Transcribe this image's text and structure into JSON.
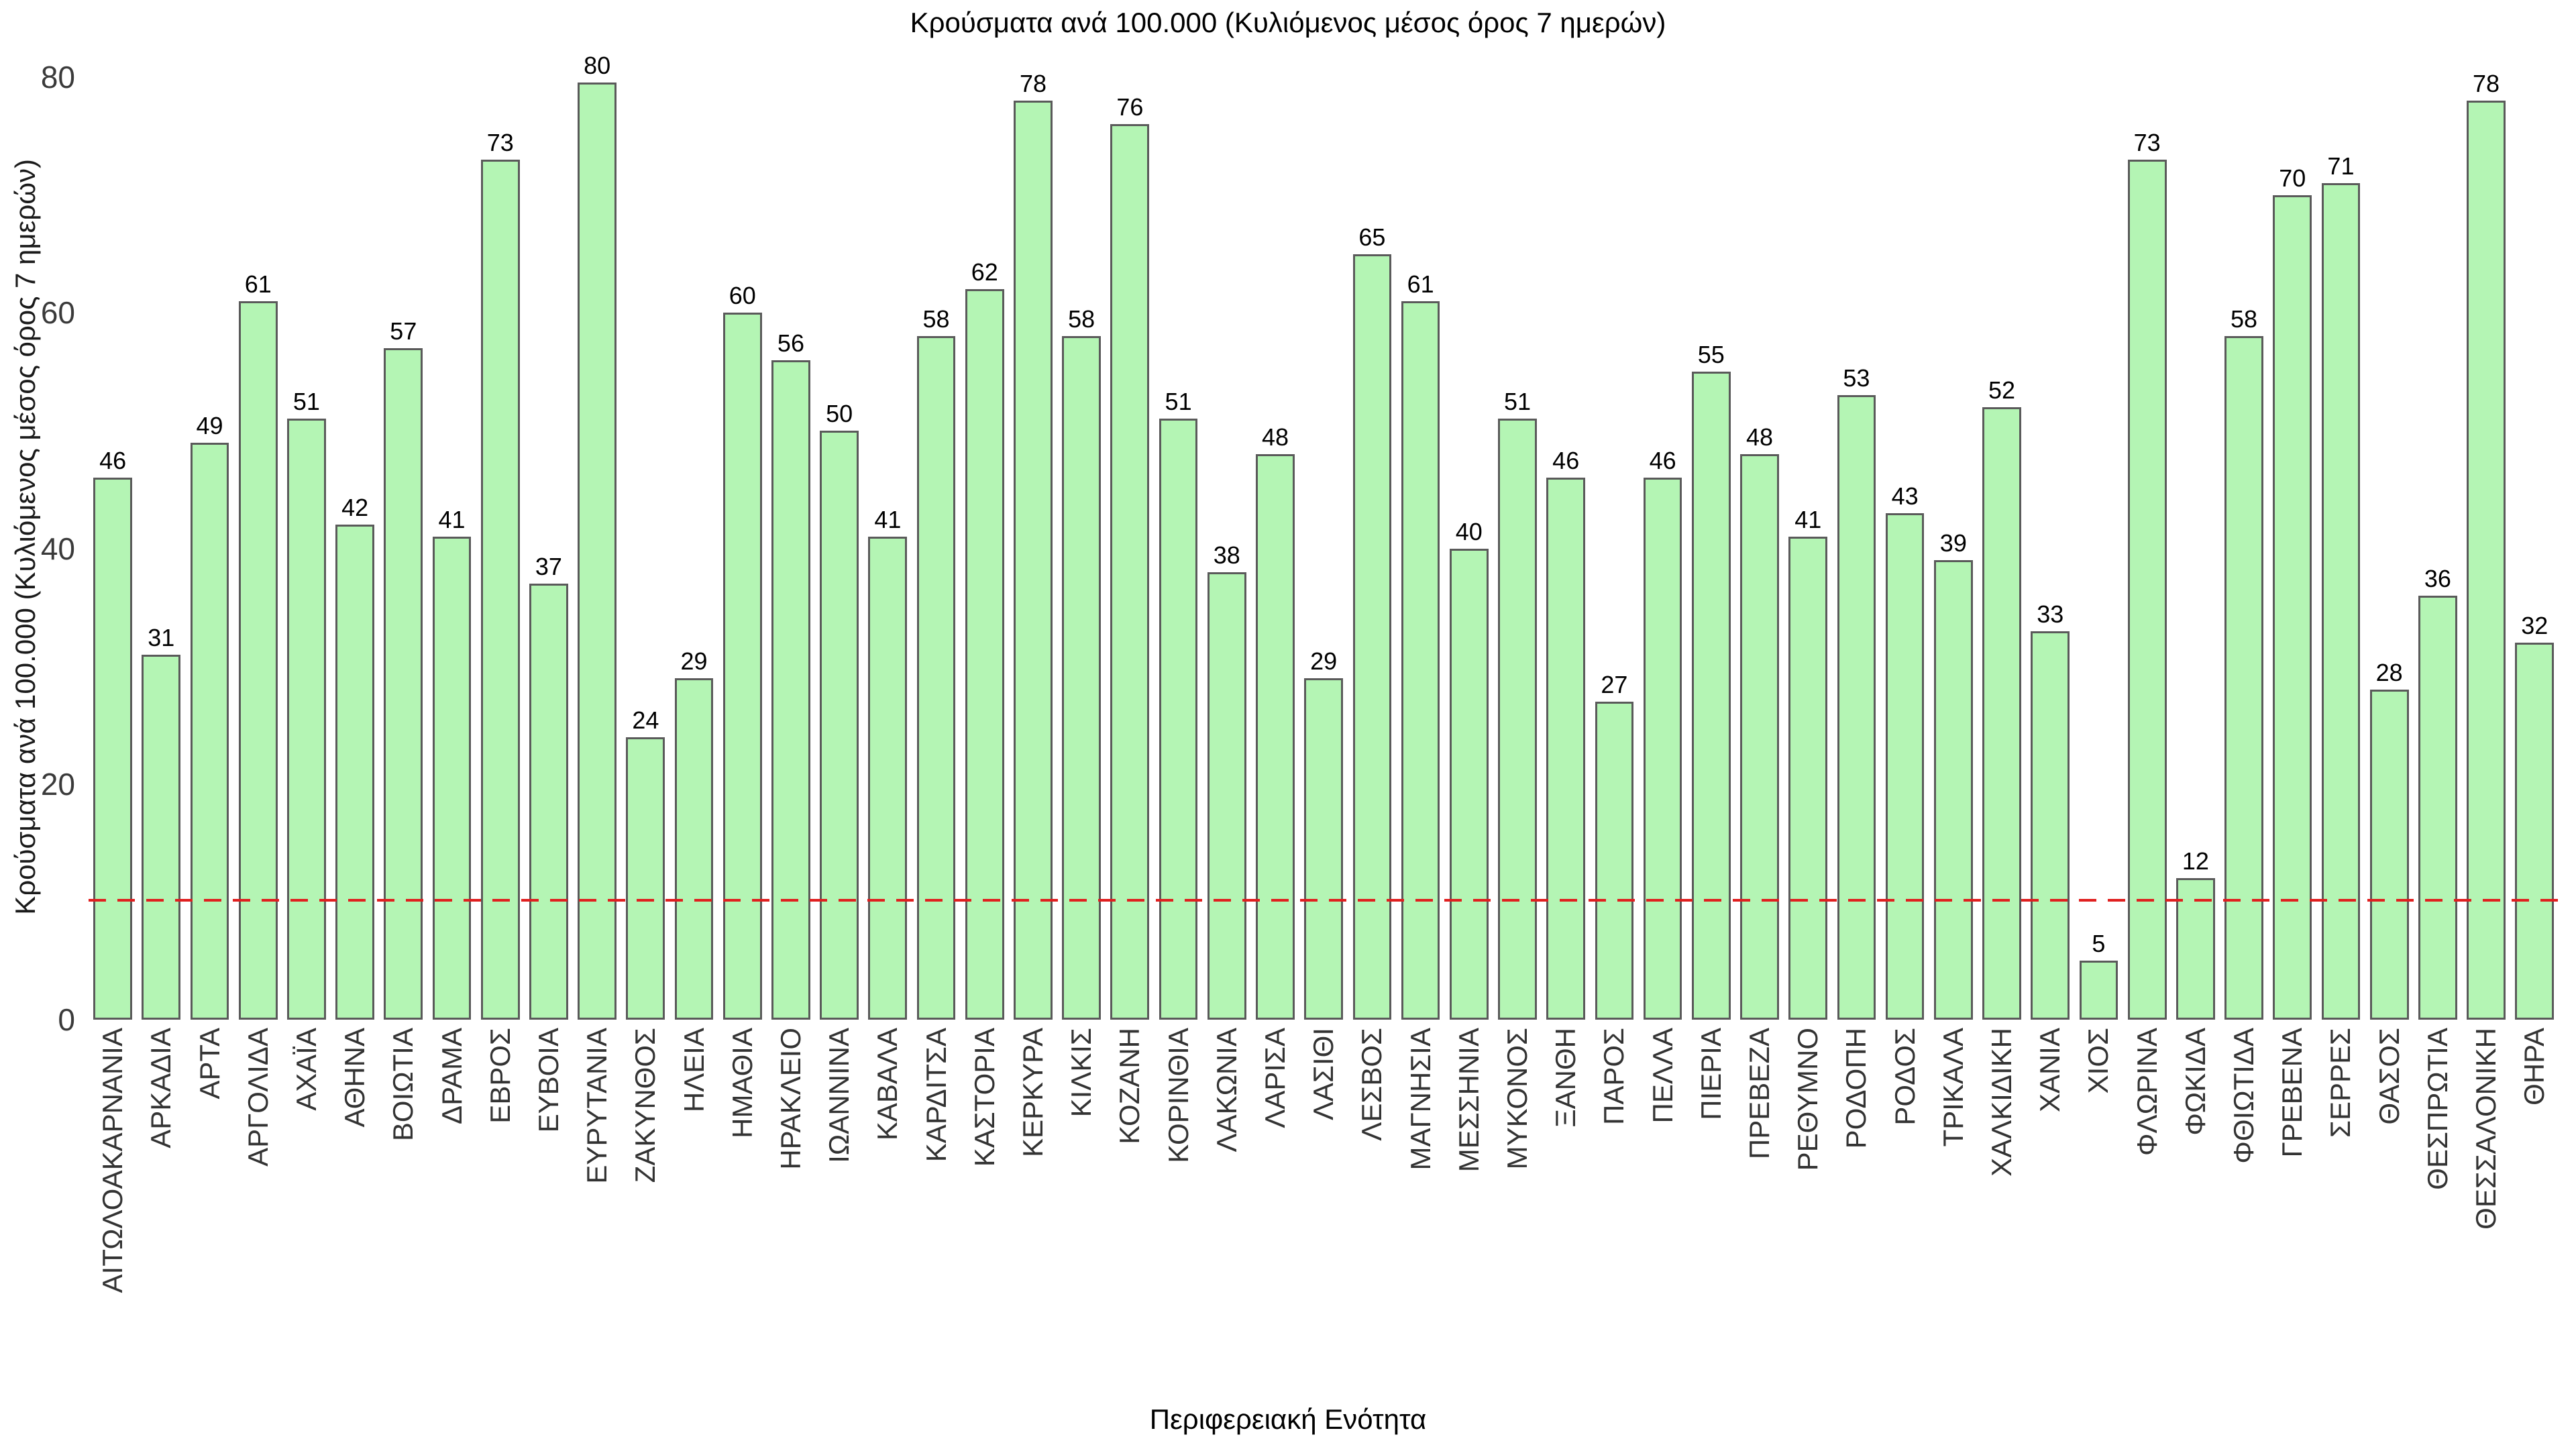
{
  "chart_data": {
    "type": "bar",
    "title": "Κρούσματα ανά 100.000 (Κυλιόμενος μέσος όρος 7 ημερών)",
    "xlabel": "Περιφερειακή Ενότητα",
    "ylabel": "Κρούσματα ανά 100.000 (Κυλιόμενος μέσος όρος 7 ημερών)",
    "categories": [
      "ΑΙΤΩΛΟΑΚΑΡΝΑΝΙΑ",
      "ΑΡΚΑΔΙΑ",
      "ΑΡΤΑ",
      "ΑΡΓΟΛΙΔΑ",
      "ΑΧΑΪΑ",
      "ΑΘΗΝΑ",
      "ΒΟΙΩΤΙΑ",
      "ΔΡΑΜΑ",
      "ΕΒΡΟΣ",
      "ΕΥΒΟΙΑ",
      "ΕΥΡΥΤΑΝΙΑ",
      "ΖΑΚΥΝΘΟΣ",
      "ΗΛΕΙΑ",
      "ΗΜΑΘΙΑ",
      "ΗΡΑΚΛΕΙΟ",
      "ΙΩΑΝΝΙΝΑ",
      "ΚΑΒΑΛΑ",
      "ΚΑΡΔΙΤΣΑ",
      "ΚΑΣΤΟΡΙΑ",
      "ΚΕΡΚΥΡΑ",
      "ΚΙΛΚΙΣ",
      "ΚΟΖΑΝΗ",
      "ΚΟΡΙΝΘΙΑ",
      "ΛΑΚΩΝΙΑ",
      "ΛΑΡΙΣΑ",
      "ΛΑΣΙΘΙ",
      "ΛΕΣΒΟΣ",
      "ΜΑΓΝΗΣΙΑ",
      "ΜΕΣΣΗΝΙΑ",
      "ΜΥΚΟΝΟΣ",
      "ΞΑΝΘΗ",
      "ΠΑΡΟΣ",
      "ΠΕΛΛΑ",
      "ΠΙΕΡΙΑ",
      "ΠΡΕΒΕΖΑ",
      "ΡΕΘΥΜΝΟ",
      "ΡΟΔΟΠΗ",
      "ΡΟΔΟΣ",
      "ΤΡΙΚΑΛΑ",
      "ΧΑΛΚΙΔΙΚΗ",
      "ΧΑΝΙΑ",
      "ΧΙΟΣ",
      "ΦΛΩΡΙΝΑ",
      "ΦΩΚΙΔΑ",
      "ΦΘΙΩΤΙΔΑ",
      "ΓΡΕΒΕΝΑ",
      "ΣΕΡΡΕΣ",
      "ΘΑΣΟΣ",
      "ΘΕΣΠΡΩΤΙΑ",
      "ΘΕΣΣΑΛΟΝΙΚΗ",
      "ΘΗΡΑ"
    ],
    "values": [
      46,
      31,
      49,
      61,
      51,
      42,
      57,
      41,
      73,
      37,
      80,
      24,
      29,
      60,
      56,
      50,
      41,
      58,
      62,
      78,
      58,
      76,
      51,
      38,
      48,
      29,
      65,
      61,
      40,
      51,
      46,
      27,
      46,
      55,
      48,
      41,
      53,
      43,
      39,
      52,
      33,
      5,
      73,
      12,
      58,
      70,
      71,
      28,
      36,
      78,
      32
    ],
    "ylim": [
      0,
      82
    ],
    "yticks": [
      0,
      20,
      40,
      60,
      80
    ],
    "grid": false,
    "legend": null,
    "reference_line": {
      "y": 10,
      "color": "#e01f1f",
      "style": "dashed"
    },
    "bar_fill_color": "#b4f5b4",
    "bar_border_color": "#5a5a5a"
  }
}
